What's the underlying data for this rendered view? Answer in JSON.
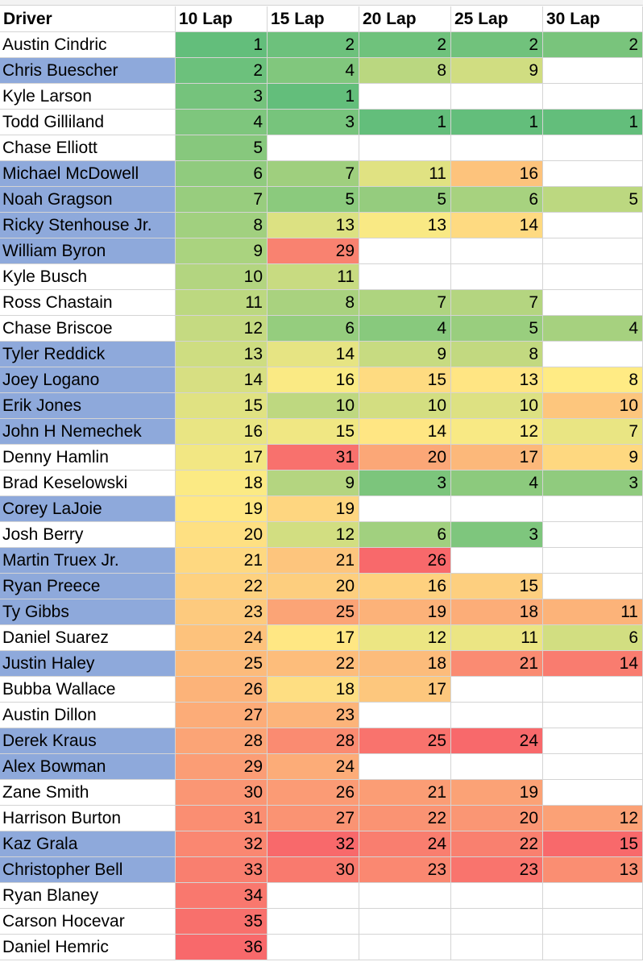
{
  "sheet": {
    "headers": [
      "Driver",
      "10 Lap",
      "15 Lap",
      "20 Lap",
      "25 Lap",
      "30 Lap"
    ],
    "highlight_color": "#8EA9DB",
    "rows": [
      {
        "driver": "Austin Cindric",
        "highlighted": false,
        "ranks": [
          1,
          2,
          2,
          2,
          2
        ]
      },
      {
        "driver": "Chris Buescher",
        "highlighted": true,
        "ranks": [
          2,
          4,
          8,
          9,
          null
        ]
      },
      {
        "driver": "Kyle Larson",
        "highlighted": false,
        "ranks": [
          3,
          1,
          null,
          null,
          null
        ]
      },
      {
        "driver": "Todd Gilliland",
        "highlighted": false,
        "ranks": [
          4,
          3,
          1,
          1,
          1
        ]
      },
      {
        "driver": "Chase Elliott",
        "highlighted": false,
        "ranks": [
          5,
          null,
          null,
          null,
          null
        ]
      },
      {
        "driver": "Michael McDowell",
        "highlighted": true,
        "ranks": [
          6,
          7,
          11,
          16,
          null
        ]
      },
      {
        "driver": "Noah Gragson",
        "highlighted": true,
        "ranks": [
          7,
          5,
          5,
          6,
          5
        ]
      },
      {
        "driver": "Ricky Stenhouse Jr.",
        "highlighted": true,
        "ranks": [
          8,
          13,
          13,
          14,
          null
        ]
      },
      {
        "driver": "William Byron",
        "highlighted": true,
        "ranks": [
          9,
          29,
          null,
          null,
          null
        ]
      },
      {
        "driver": "Kyle Busch",
        "highlighted": false,
        "ranks": [
          10,
          11,
          null,
          null,
          null
        ]
      },
      {
        "driver": "Ross Chastain",
        "highlighted": false,
        "ranks": [
          11,
          8,
          7,
          7,
          null
        ]
      },
      {
        "driver": "Chase Briscoe",
        "highlighted": false,
        "ranks": [
          12,
          6,
          4,
          5,
          4
        ]
      },
      {
        "driver": "Tyler Reddick",
        "highlighted": true,
        "ranks": [
          13,
          14,
          9,
          8,
          null
        ]
      },
      {
        "driver": "Joey Logano",
        "highlighted": true,
        "ranks": [
          14,
          16,
          15,
          13,
          8
        ]
      },
      {
        "driver": "Erik Jones",
        "highlighted": true,
        "ranks": [
          15,
          10,
          10,
          10,
          10
        ]
      },
      {
        "driver": "John H Nemechek",
        "highlighted": true,
        "ranks": [
          16,
          15,
          14,
          12,
          7
        ]
      },
      {
        "driver": "Denny Hamlin",
        "highlighted": false,
        "ranks": [
          17,
          31,
          20,
          17,
          9
        ]
      },
      {
        "driver": "Brad Keselowski",
        "highlighted": false,
        "ranks": [
          18,
          9,
          3,
          4,
          3
        ]
      },
      {
        "driver": "Corey LaJoie",
        "highlighted": true,
        "ranks": [
          19,
          19,
          null,
          null,
          null
        ]
      },
      {
        "driver": "Josh Berry",
        "highlighted": false,
        "ranks": [
          20,
          12,
          6,
          3,
          null
        ]
      },
      {
        "driver": "Martin Truex Jr.",
        "highlighted": true,
        "ranks": [
          21,
          21,
          26,
          null,
          null
        ]
      },
      {
        "driver": "Ryan Preece",
        "highlighted": true,
        "ranks": [
          22,
          20,
          16,
          15,
          null
        ]
      },
      {
        "driver": "Ty Gibbs",
        "highlighted": true,
        "ranks": [
          23,
          25,
          19,
          18,
          11
        ]
      },
      {
        "driver": "Daniel Suarez",
        "highlighted": false,
        "ranks": [
          24,
          17,
          12,
          11,
          6
        ]
      },
      {
        "driver": "Justin Haley",
        "highlighted": true,
        "ranks": [
          25,
          22,
          18,
          21,
          14
        ]
      },
      {
        "driver": "Bubba Wallace",
        "highlighted": false,
        "ranks": [
          26,
          18,
          17,
          null,
          null
        ]
      },
      {
        "driver": "Austin Dillon",
        "highlighted": false,
        "ranks": [
          27,
          23,
          null,
          null,
          null
        ]
      },
      {
        "driver": "Derek Kraus",
        "highlighted": true,
        "ranks": [
          28,
          28,
          25,
          24,
          null
        ]
      },
      {
        "driver": "Alex Bowman",
        "highlighted": true,
        "ranks": [
          29,
          24,
          null,
          null,
          null
        ]
      },
      {
        "driver": "Zane Smith",
        "highlighted": false,
        "ranks": [
          30,
          26,
          21,
          19,
          null
        ]
      },
      {
        "driver": "Harrison Burton",
        "highlighted": false,
        "ranks": [
          31,
          27,
          22,
          20,
          12
        ]
      },
      {
        "driver": "Kaz Grala",
        "highlighted": true,
        "ranks": [
          32,
          32,
          24,
          22,
          15
        ]
      },
      {
        "driver": "Christopher Bell",
        "highlighted": true,
        "ranks": [
          33,
          30,
          23,
          23,
          13
        ]
      },
      {
        "driver": "Ryan Blaney",
        "highlighted": false,
        "ranks": [
          34,
          null,
          null,
          null,
          null
        ]
      },
      {
        "driver": "Carson Hocevar",
        "highlighted": false,
        "ranks": [
          35,
          null,
          null,
          null,
          null
        ]
      },
      {
        "driver": "Daniel Hemric",
        "highlighted": false,
        "ranks": [
          36,
          null,
          null,
          null,
          null
        ]
      }
    ]
  }
}
